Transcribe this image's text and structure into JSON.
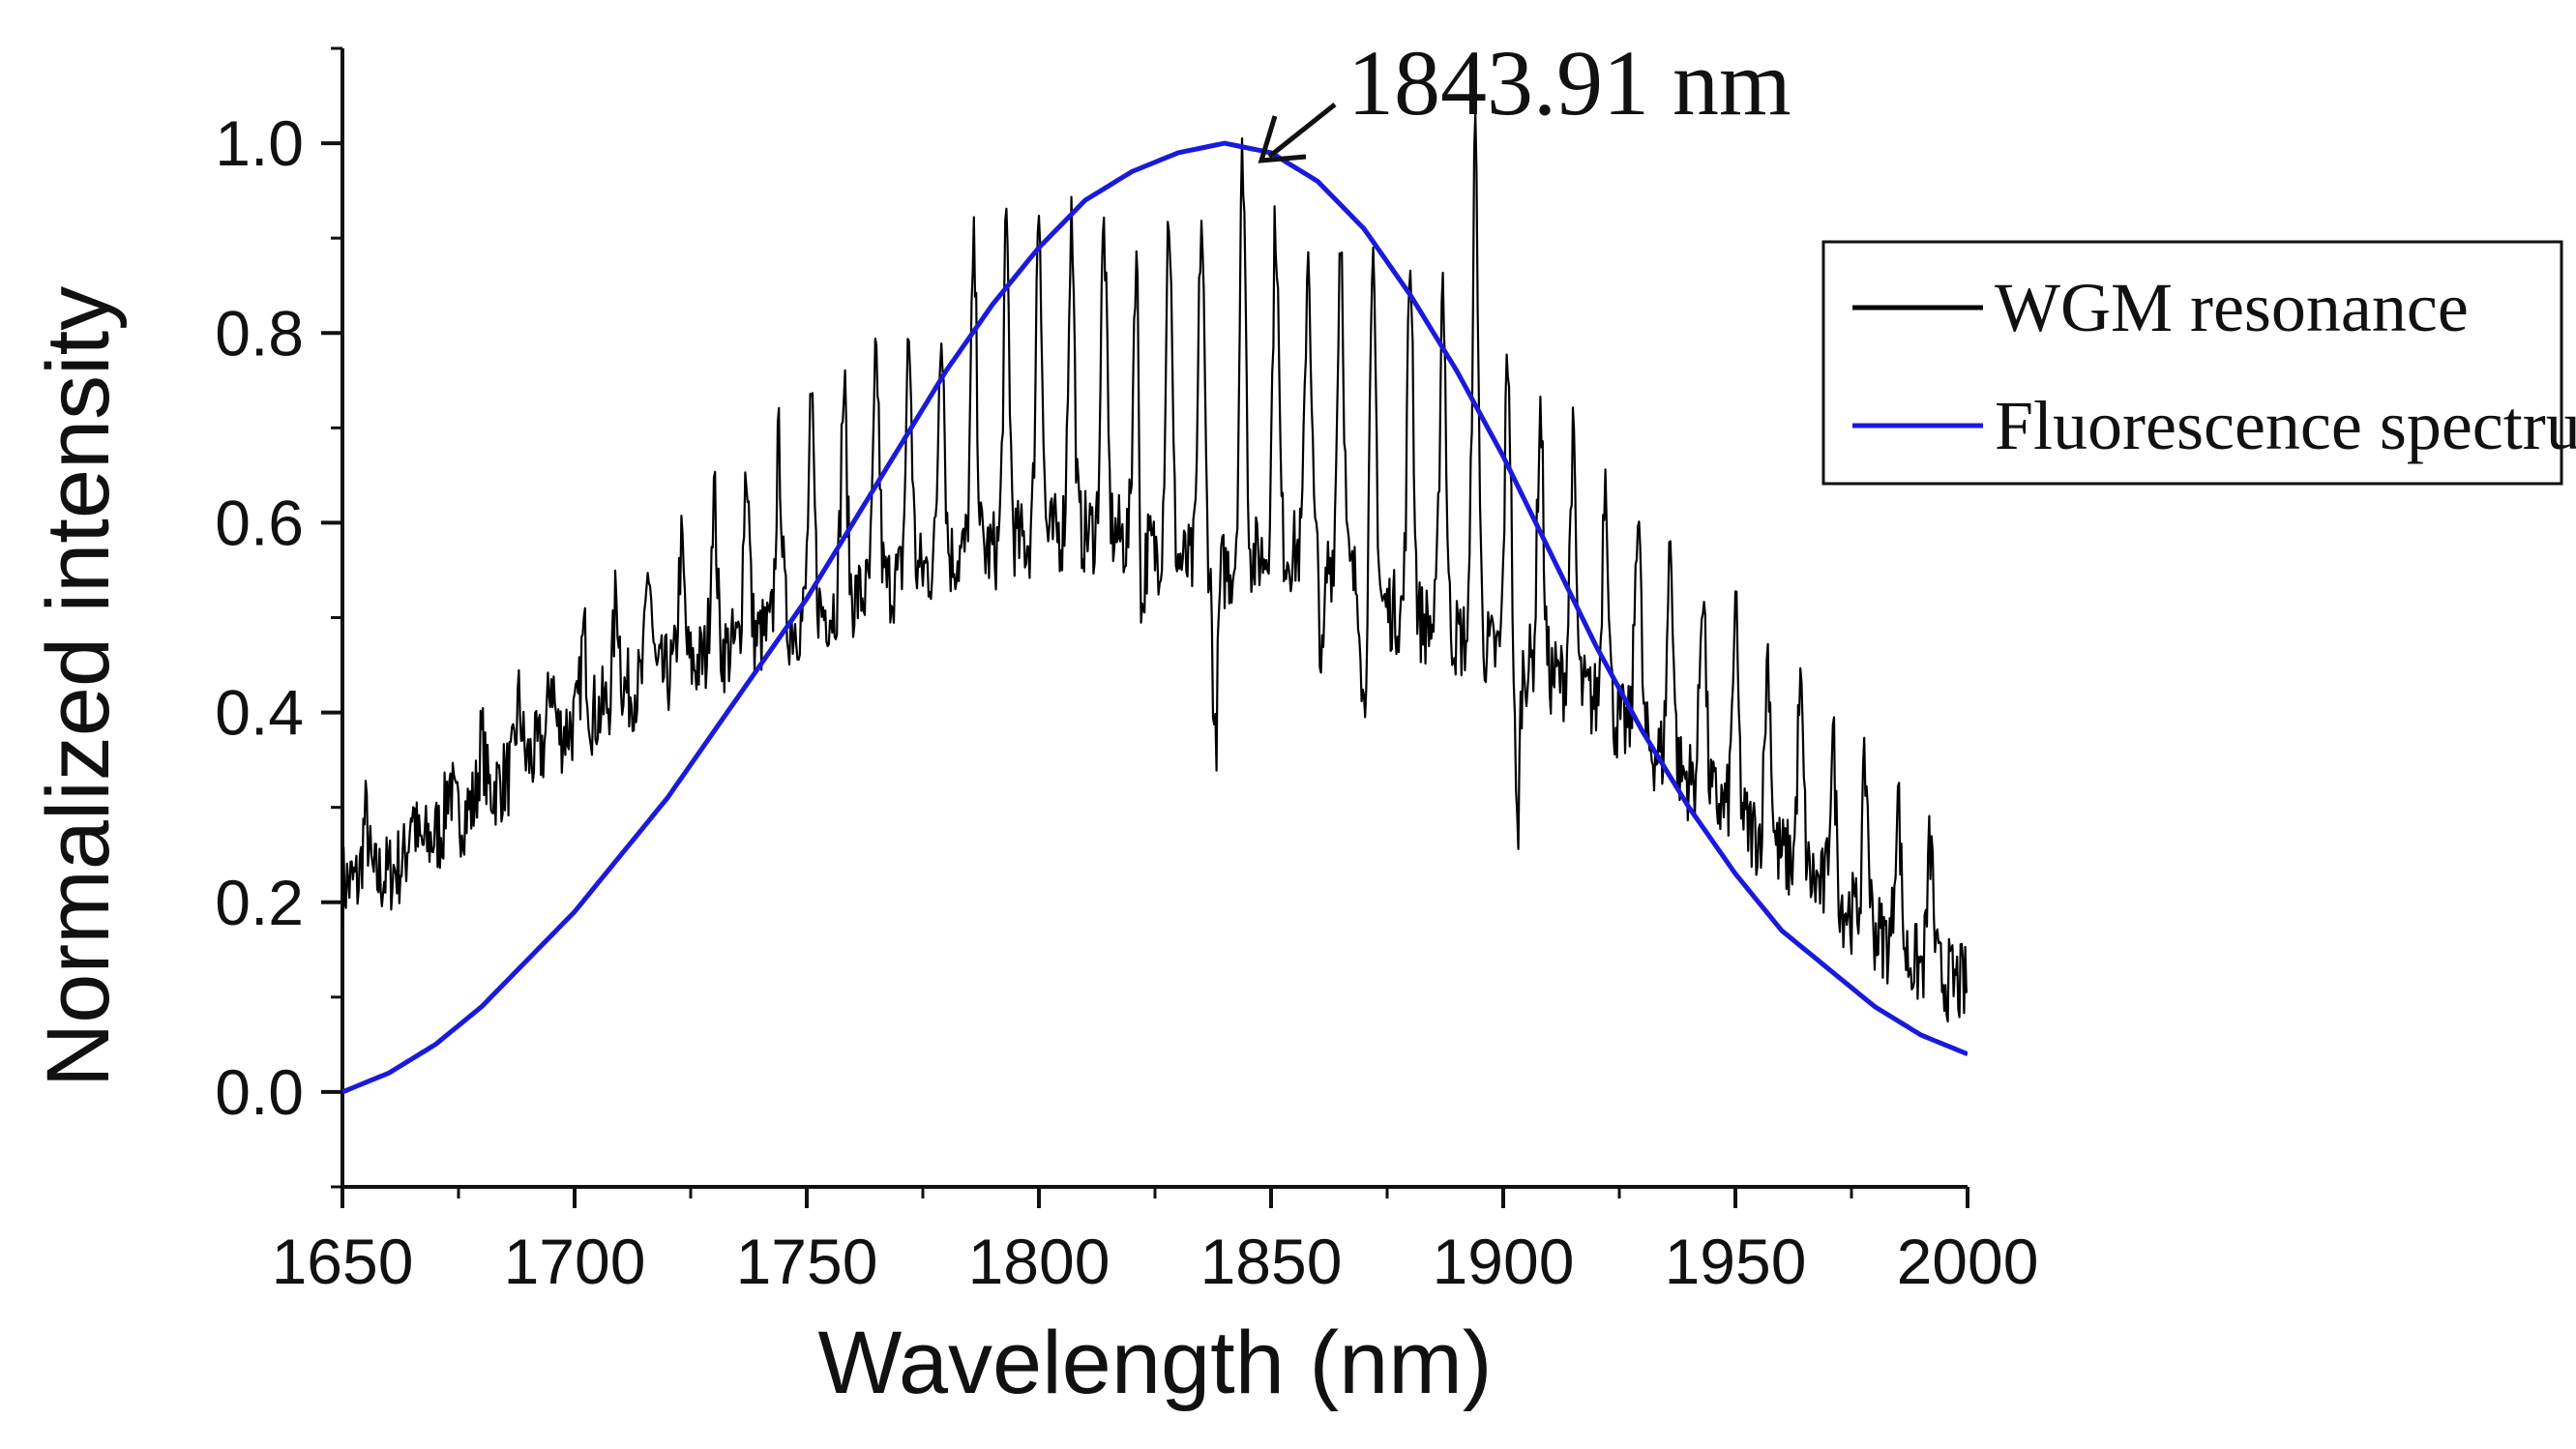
{
  "chart_data": {
    "type": "line",
    "xlabel": "Wavelength (nm)",
    "ylabel": "Normalized intensity",
    "xlim": [
      1650,
      2000
    ],
    "ylim": [
      -0.1,
      1.1
    ],
    "x_ticks": [
      1650,
      1700,
      1750,
      1800,
      1850,
      1900,
      1950,
      2000
    ],
    "x_tick_labels": [
      "1650",
      "1700",
      "1750",
      "1800",
      "1850",
      "1900",
      "1950",
      "2000"
    ],
    "y_ticks": [
      0.0,
      0.2,
      0.4,
      0.6,
      0.8,
      1.0
    ],
    "y_tick_labels": [
      "0.0",
      "0.2",
      "0.4",
      "0.6",
      "0.8",
      "1.0"
    ],
    "grid": false,
    "legend_position": "top-right",
    "annotation": {
      "text": "1843.91 nm",
      "x": 1843.91,
      "y": 0.99
    },
    "series": [
      {
        "name": "WGM resonance",
        "color": "#000000",
        "x": [
          1650,
          1655,
          1660,
          1665,
          1670,
          1675,
          1680,
          1685,
          1690,
          1695,
          1700,
          1705,
          1710,
          1715,
          1720,
          1725,
          1730,
          1735,
          1740,
          1745,
          1750,
          1755,
          1760,
          1765,
          1770,
          1775,
          1780,
          1785,
          1790,
          1795,
          1800,
          1805,
          1810,
          1815,
          1820,
          1825,
          1830,
          1835,
          1840,
          1845,
          1850,
          1855,
          1860,
          1865,
          1870,
          1875,
          1880,
          1885,
          1890,
          1895,
          1900,
          1905,
          1910,
          1915,
          1920,
          1925,
          1930,
          1935,
          1940,
          1945,
          1950,
          1955,
          1960,
          1965,
          1970,
          1975,
          1980,
          1985,
          1990,
          1995,
          2000
        ],
        "baseline": [
          0.22,
          0.22,
          0.23,
          0.25,
          0.27,
          0.29,
          0.31,
          0.33,
          0.35,
          0.37,
          0.39,
          0.4,
          0.42,
          0.43,
          0.44,
          0.45,
          0.46,
          0.47,
          0.48,
          0.49,
          0.5,
          0.51,
          0.52,
          0.53,
          0.54,
          0.55,
          0.56,
          0.57,
          0.57,
          0.58,
          0.58,
          0.59,
          0.59,
          0.59,
          0.58,
          0.57,
          0.56,
          0.55,
          0.55,
          0.56,
          0.57,
          0.57,
          0.57,
          0.55,
          0.53,
          0.51,
          0.5,
          0.49,
          0.48,
          0.47,
          0.46,
          0.45,
          0.44,
          0.43,
          0.41,
          0.39,
          0.37,
          0.35,
          0.33,
          0.31,
          0.29,
          0.27,
          0.25,
          0.23,
          0.21,
          0.19,
          0.17,
          0.15,
          0.13,
          0.12,
          0.11
        ],
        "peaks_x": [
          1655,
          1665,
          1673,
          1680,
          1688,
          1695,
          1702,
          1709,
          1716,
          1723,
          1730,
          1737,
          1744,
          1751,
          1758,
          1765,
          1772,
          1779,
          1786,
          1793,
          1800,
          1807,
          1814,
          1821,
          1828,
          1835,
          1843.91,
          1851,
          1858,
          1865,
          1872,
          1880,
          1887,
          1894,
          1901,
          1908,
          1915,
          1922,
          1929,
          1936,
          1943,
          1950,
          1957,
          1964,
          1971,
          1978,
          1985,
          1992
        ],
        "peaks_y": [
          0.29,
          0.3,
          0.33,
          0.37,
          0.41,
          0.44,
          0.48,
          0.52,
          0.55,
          0.57,
          0.63,
          0.66,
          0.68,
          0.71,
          0.74,
          0.77,
          0.79,
          0.82,
          0.88,
          0.9,
          0.94,
          0.92,
          0.91,
          0.9,
          0.93,
          0.92,
          0.99,
          0.92,
          0.89,
          0.91,
          0.85,
          0.88,
          0.86,
          1.0,
          0.78,
          0.72,
          0.68,
          0.66,
          0.62,
          0.58,
          0.54,
          0.5,
          0.46,
          0.42,
          0.37,
          0.34,
          0.31,
          0.26
        ],
        "dips_x": [
          1822,
          1838,
          1861,
          1870,
          1903
        ],
        "dips_y": [
          0.44,
          0.36,
          0.44,
          0.4,
          0.27
        ]
      },
      {
        "name": "Fluorescence spectrum",
        "color": "#1a1adb",
        "x": [
          1650,
          1660,
          1670,
          1680,
          1690,
          1700,
          1710,
          1720,
          1730,
          1740,
          1750,
          1760,
          1770,
          1780,
          1790,
          1800,
          1810,
          1820,
          1830,
          1840,
          1850,
          1860,
          1870,
          1880,
          1890,
          1900,
          1910,
          1920,
          1930,
          1940,
          1950,
          1960,
          1970,
          1980,
          1990,
          2000
        ],
        "values": [
          0.0,
          0.02,
          0.05,
          0.09,
          0.14,
          0.19,
          0.25,
          0.31,
          0.38,
          0.45,
          0.52,
          0.6,
          0.68,
          0.76,
          0.83,
          0.89,
          0.94,
          0.97,
          0.99,
          1.0,
          0.99,
          0.96,
          0.91,
          0.84,
          0.76,
          0.67,
          0.57,
          0.47,
          0.38,
          0.3,
          0.23,
          0.17,
          0.13,
          0.09,
          0.06,
          0.04
        ]
      }
    ]
  }
}
